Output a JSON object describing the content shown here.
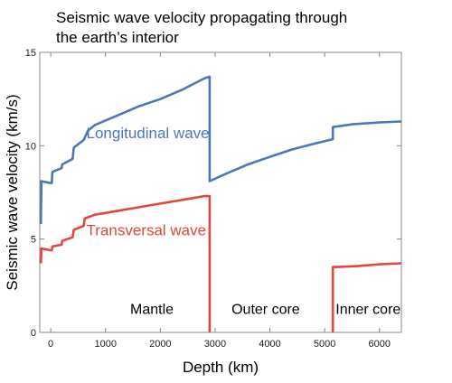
{
  "chart_data": {
    "type": "line",
    "title": "Seismic wave velocity propagating through the earth’s interior",
    "title_lines": [
      "Seismic wave velocity propagating through",
      "the earth’s interior"
    ],
    "xlabel": "Depth (km)",
    "ylabel": "Seismic wave velocity (km/s)",
    "xlim": [
      -200,
      6400
    ],
    "ylim": [
      0,
      15
    ],
    "x_ticks": [
      0,
      1000,
      2000,
      3000,
      4000,
      5000,
      6000
    ],
    "y_ticks": [
      0,
      5,
      10,
      15
    ],
    "grid": false,
    "series": [
      {
        "name": "Longitudinal wave",
        "color": "#4a78b8",
        "points": [
          [
            -180,
            5.8
          ],
          [
            -170,
            8.1
          ],
          [
            0,
            8.0
          ],
          [
            20,
            8.0
          ],
          [
            30,
            8.6
          ],
          [
            200,
            8.8
          ],
          [
            210,
            9.0
          ],
          [
            400,
            9.3
          ],
          [
            420,
            9.9
          ],
          [
            600,
            10.3
          ],
          [
            680,
            10.8
          ],
          [
            800,
            11.1
          ],
          [
            1200,
            11.6
          ],
          [
            1600,
            12.1
          ],
          [
            2000,
            12.5
          ],
          [
            2400,
            13.0
          ],
          [
            2800,
            13.6
          ],
          [
            2900,
            13.7
          ],
          [
            2900,
            8.1
          ],
          [
            3200,
            8.5
          ],
          [
            3600,
            9.0
          ],
          [
            4000,
            9.4
          ],
          [
            4400,
            9.8
          ],
          [
            4800,
            10.1
          ],
          [
            5150,
            10.35
          ],
          [
            5150,
            11.0
          ],
          [
            5500,
            11.15
          ],
          [
            6000,
            11.25
          ],
          [
            6400,
            11.3
          ]
        ]
      },
      {
        "name": "Transversal wave",
        "color": "#e0483c",
        "points": [
          [
            -180,
            3.7
          ],
          [
            -170,
            4.5
          ],
          [
            0,
            4.4
          ],
          [
            20,
            4.4
          ],
          [
            30,
            4.6
          ],
          [
            200,
            4.7
          ],
          [
            210,
            4.9
          ],
          [
            400,
            5.1
          ],
          [
            420,
            5.5
          ],
          [
            600,
            5.7
          ],
          [
            620,
            6.1
          ],
          [
            800,
            6.3
          ],
          [
            1200,
            6.5
          ],
          [
            1600,
            6.7
          ],
          [
            2000,
            6.9
          ],
          [
            2400,
            7.1
          ],
          [
            2800,
            7.3
          ],
          [
            2900,
            7.3
          ],
          [
            2900,
            0
          ]
        ],
        "segments_after_gap": [
          [
            5150,
            0
          ],
          [
            5150,
            3.5
          ],
          [
            5600,
            3.55
          ],
          [
            6000,
            3.65
          ],
          [
            6400,
            3.7
          ]
        ]
      }
    ],
    "annotations": [
      {
        "text": "Longitudinal wave",
        "x": 650,
        "y": 10.4,
        "color": "#4a78b8"
      },
      {
        "text": "Transversal wave",
        "x": 650,
        "y": 5.2,
        "color": "#e0483c"
      },
      {
        "text": "Mantle",
        "x": 1450,
        "y": 1.0,
        "color": "#000000"
      },
      {
        "text": "Outer core",
        "x": 3300,
        "y": 1.0,
        "color": "#000000"
      },
      {
        "text": "Inner core",
        "x": 5200,
        "y": 1.0,
        "color": "#000000"
      }
    ]
  }
}
